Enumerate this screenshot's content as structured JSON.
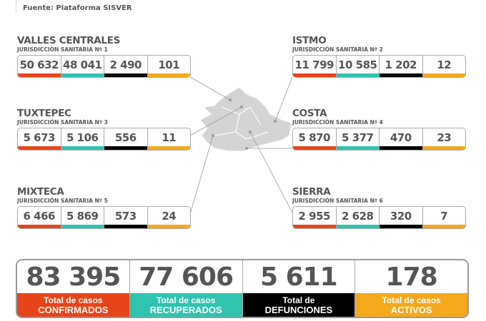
{
  "header": {
    "source": "Fuente: Plataforma SISVER"
  },
  "colors": {
    "confirmados": "#e8441a",
    "recuperados": "#2ec4b0",
    "defunciones": "#000000",
    "activos": "#f5a81c",
    "map": "#d4d4d4"
  },
  "regions": [
    {
      "name": "VALLES CENTRALES",
      "sub": "JURISDICCIÓN SANITARIA Nº 1",
      "values": [
        "50 632",
        "48 041",
        "2 490",
        "101"
      ]
    },
    {
      "name": "ISTMO",
      "sub": "JURISDICCIÓN SANITARIA Nº 2",
      "values": [
        "11 799",
        "10 585",
        "1 202",
        "12"
      ]
    },
    {
      "name": "TUXTEPEC",
      "sub": "JURISDICCIÓN SANITARIA Nº 3",
      "values": [
        "5 673",
        "5 106",
        "556",
        "11"
      ]
    },
    {
      "name": "COSTA",
      "sub": "JURISDICCIÓN SANITARIA Nº 4",
      "values": [
        "5 870",
        "5 377",
        "470",
        "23"
      ]
    },
    {
      "name": "MIXTECA",
      "sub": "JURISDICCIÓN SANITARIA Nº 5",
      "values": [
        "6 466",
        "5 869",
        "573",
        "24"
      ]
    },
    {
      "name": "SIERRA",
      "sub": "JURISDICCIÓN SANITARIA Nº 6",
      "values": [
        "2 955",
        "2 628",
        "320",
        "7"
      ]
    }
  ],
  "totals": [
    {
      "value": "83 395",
      "line1": "Total de casos",
      "line2": "CONFIRMADOS"
    },
    {
      "value": "77 606",
      "line1": "Total de casos",
      "line2": "RECUPERADOS"
    },
    {
      "value": "5 611",
      "line1": "Total de",
      "line2": "DEFUNCIONES"
    },
    {
      "value": "178",
      "line1": "Total de casos",
      "line2": "ACTIVOS"
    }
  ]
}
